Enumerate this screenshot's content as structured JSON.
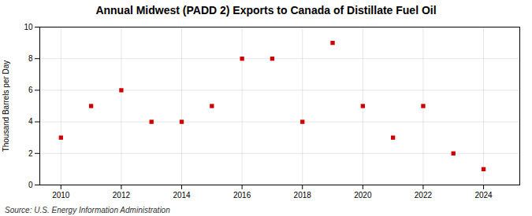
{
  "chart_data": {
    "type": "scatter",
    "title": "Annual Midwest (PADD 2) Exports to Canada of Distillate Fuel Oil",
    "ylabel": "Thousand Barrels per Day",
    "source": "Source: U.S. Energy Information Administration",
    "x": [
      2010,
      2011,
      2012,
      2013,
      2014,
      2015,
      2016,
      2017,
      2018,
      2019,
      2020,
      2021,
      2022,
      2023,
      2024
    ],
    "values": [
      3,
      5,
      6,
      4,
      4,
      5,
      8,
      8,
      4,
      9,
      5,
      3,
      5,
      2,
      1
    ],
    "color": "#cc0000",
    "marker": "square",
    "xlim": [
      2009.3,
      2025.2
    ],
    "xticks": [
      2010,
      2012,
      2014,
      2016,
      2018,
      2020,
      2022,
      2024
    ],
    "ylim": [
      0,
      10
    ],
    "yticks": [
      0,
      2,
      4,
      6,
      8,
      10
    ],
    "grid": true
  }
}
